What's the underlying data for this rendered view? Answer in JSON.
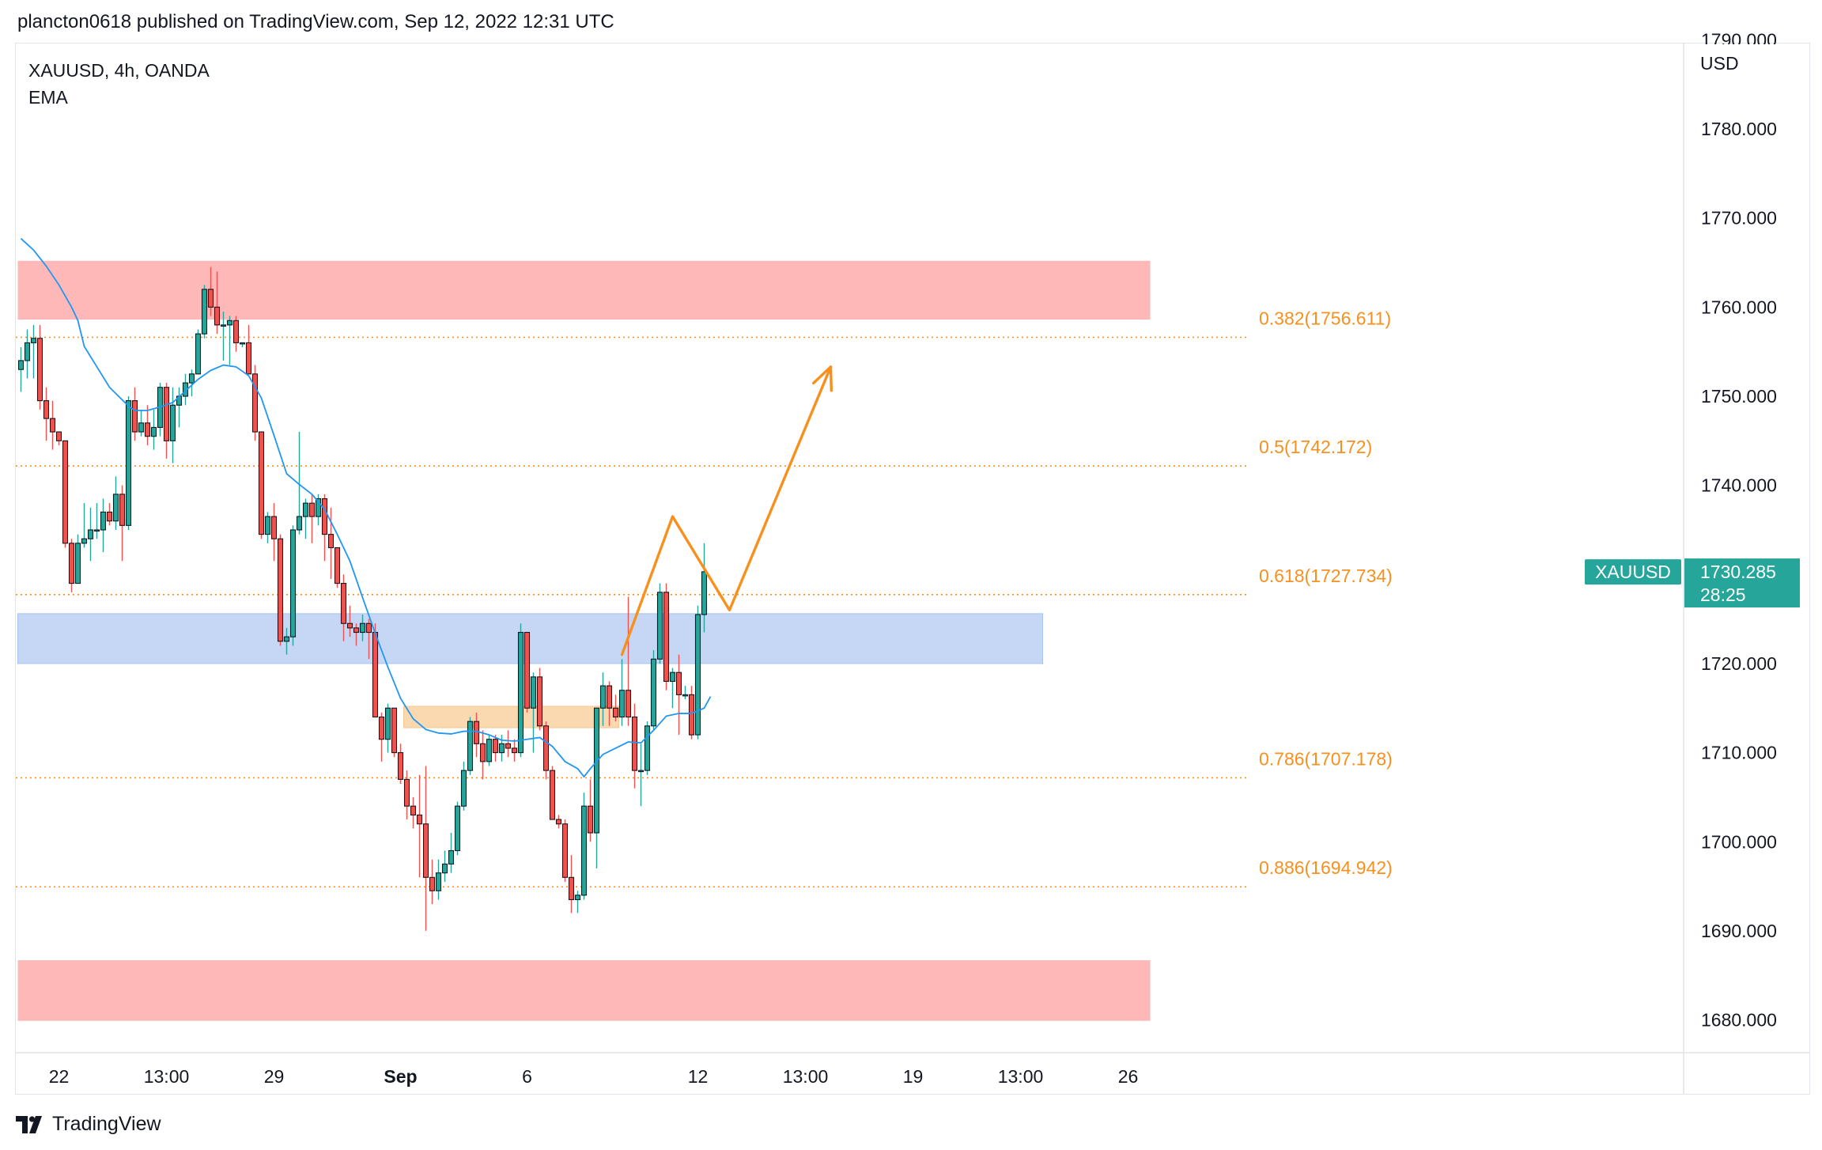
{
  "header": {
    "publisher": "plancton0618 published on TradingView.com, Sep 12, 2022 12:31 UTC"
  },
  "legend": {
    "symbol": "XAUUSD, 4h, OANDA",
    "indicator": "EMA"
  },
  "brand": {
    "name": "TradingView",
    "logo_icon": "tradingview-logo-icon"
  },
  "colors": {
    "up": "#26a69a",
    "down": "#ef5350",
    "wick": "#131722",
    "ema": "#2196f3",
    "fib": "#f7901e",
    "resistance_zone": "#ffb8b8",
    "support_zone": "#c5d7f5",
    "orange_zone": "#fbd9b0",
    "price_tag": "#26a69a"
  },
  "chart_data": {
    "type": "candlestick",
    "title": "XAUUSD, 4h, OANDA",
    "currency_label": "USD",
    "y_ticks": [
      "1780.000",
      "1770.000",
      "1760.000",
      "1750.000",
      "1740.000",
      "1730.000",
      "1720.000",
      "1710.000",
      "1700.000",
      "1690.000",
      "1680.000"
    ],
    "ylim": [
      1676.5,
      1789.5
    ],
    "x_ticks": [
      {
        "label": "22",
        "bar": 6,
        "bold": false
      },
      {
        "label": "13:00",
        "bar": 23,
        "bold": false
      },
      {
        "label": "29",
        "bar": 40,
        "bold": false
      },
      {
        "label": "Sep",
        "bar": 60,
        "bold": true
      },
      {
        "label": "6",
        "bar": 80,
        "bold": false
      },
      {
        "label": "12",
        "bar": 107,
        "bold": false
      },
      {
        "label": "13:00",
        "bar": 124,
        "bold": false
      },
      {
        "label": "19",
        "bar": 141,
        "bold": false
      },
      {
        "label": "13:00",
        "bar": 158,
        "bold": false
      },
      {
        "label": "26",
        "bar": 175,
        "bold": false
      }
    ],
    "last_price": {
      "symbol": "XAUUSD",
      "value": "1730.285",
      "countdown": "28:25",
      "y": 1730.285
    },
    "zones": [
      {
        "name": "resistance",
        "from_bar": 0,
        "to_bar": 178,
        "y_top": 1765.2,
        "y_bottom": 1758.6,
        "color": "#ffb8b8"
      },
      {
        "name": "support",
        "from_bar": 0,
        "to_bar": 178,
        "y_top": 1686.7,
        "y_bottom": 1679.9,
        "color": "#ffb8b8"
      },
      {
        "name": "demand",
        "from_bar": 0,
        "to_bar": 161,
        "y_top": 1725.6,
        "y_bottom": 1720.0,
        "color": "#c5d7f5"
      },
      {
        "name": "consolidation",
        "from_bar": 61,
        "to_bar": 94,
        "y_top": 1715.2,
        "y_bottom": 1712.8,
        "color": "#fbd9b0"
      }
    ],
    "fib_levels": [
      {
        "ratio": "0.382",
        "price": "1756.611",
        "label": "0.382(1756.611)",
        "y": 1756.611
      },
      {
        "ratio": "0.5",
        "price": "1742.172",
        "label": "0.5(1742.172)",
        "y": 1742.172
      },
      {
        "ratio": "0.618",
        "price": "1727.734",
        "label": "0.618(1727.734)",
        "y": 1727.734
      },
      {
        "ratio": "0.786",
        "price": "1707.178",
        "label": "0.786(1707.178)",
        "y": 1707.178
      },
      {
        "ratio": "0.886",
        "price": "1694.942",
        "label": "0.886(1694.942)",
        "y": 1694.942
      }
    ],
    "projection": [
      [
        95,
        1721.0
      ],
      [
        103,
        1736.5
      ],
      [
        112,
        1726.0
      ],
      [
        128,
        1753.3
      ]
    ],
    "candles": [
      [
        1753.0,
        1755.5,
        1750.5,
        1754.0
      ],
      [
        1754.0,
        1757.5,
        1752.0,
        1756.0
      ],
      [
        1756.0,
        1758.0,
        1752.0,
        1756.5
      ],
      [
        1756.5,
        1758.0,
        1748.5,
        1749.5
      ],
      [
        1749.5,
        1751.0,
        1745.0,
        1747.5
      ],
      [
        1747.5,
        1749.5,
        1744.0,
        1746.0
      ],
      [
        1746.0,
        1746.0,
        1744.5,
        1745.0
      ],
      [
        1745.0,
        1745.0,
        1733.0,
        1733.5
      ],
      [
        1733.5,
        1734.0,
        1728.0,
        1729.0
      ],
      [
        1729.0,
        1734.5,
        1729.0,
        1733.5
      ],
      [
        1733.5,
        1738.0,
        1733.0,
        1734.0
      ],
      [
        1734.0,
        1737.5,
        1731.5,
        1735.0
      ],
      [
        1735.0,
        1738.0,
        1734.0,
        1735.0
      ],
      [
        1735.0,
        1738.5,
        1732.5,
        1737.0
      ],
      [
        1737.0,
        1738.0,
        1735.5,
        1736.0
      ],
      [
        1736.0,
        1741.0,
        1735.0,
        1739.0
      ],
      [
        1739.0,
        1740.0,
        1731.5,
        1735.5
      ],
      [
        1735.5,
        1750.0,
        1735.0,
        1749.5
      ],
      [
        1749.5,
        1751.0,
        1745.0,
        1746.0
      ],
      [
        1746.0,
        1748.5,
        1745.5,
        1747.0
      ],
      [
        1747.0,
        1749.0,
        1744.5,
        1745.5
      ],
      [
        1745.5,
        1748.5,
        1744.0,
        1746.5
      ],
      [
        1746.5,
        1751.5,
        1745.5,
        1751.0
      ],
      [
        1751.0,
        1751.5,
        1743.0,
        1745.0
      ],
      [
        1745.0,
        1751.0,
        1742.5,
        1749.0
      ],
      [
        1749.0,
        1751.0,
        1746.5,
        1750.0
      ],
      [
        1750.0,
        1752.5,
        1749.0,
        1751.5
      ],
      [
        1751.5,
        1753.0,
        1750.0,
        1752.5
      ],
      [
        1752.5,
        1757.5,
        1752.5,
        1757.0
      ],
      [
        1757.0,
        1762.5,
        1756.5,
        1762.0
      ],
      [
        1762.0,
        1764.5,
        1759.0,
        1760.0
      ],
      [
        1760.0,
        1764.0,
        1757.0,
        1758.0
      ],
      [
        1758.0,
        1759.5,
        1754.0,
        1758.0
      ],
      [
        1758.0,
        1759.0,
        1753.5,
        1758.5
      ],
      [
        1758.5,
        1759.0,
        1755.0,
        1756.0
      ],
      [
        1756.0,
        1756.0,
        1755.5,
        1756.0
      ],
      [
        1756.0,
        1758.0,
        1752.5,
        1752.5
      ],
      [
        1752.5,
        1753.5,
        1745.0,
        1746.0
      ],
      [
        1746.0,
        1746.0,
        1734.0,
        1734.5
      ],
      [
        1734.5,
        1737.0,
        1733.5,
        1736.5
      ],
      [
        1736.5,
        1738.0,
        1731.5,
        1734.0
      ],
      [
        1734.0,
        1734.5,
        1722.0,
        1722.5
      ],
      [
        1722.5,
        1724.0,
        1721.0,
        1723.0
      ],
      [
        1723.0,
        1735.5,
        1722.0,
        1735.0
      ],
      [
        1735.0,
        1746.0,
        1734.5,
        1736.5
      ],
      [
        1736.5,
        1738.5,
        1734.0,
        1738.0
      ],
      [
        1738.0,
        1739.0,
        1733.5,
        1736.5
      ],
      [
        1736.5,
        1739.0,
        1735.5,
        1738.5
      ],
      [
        1738.5,
        1739.0,
        1731.5,
        1734.5
      ],
      [
        1734.5,
        1737.5,
        1729.5,
        1733.0
      ],
      [
        1733.0,
        1733.0,
        1728.5,
        1729.0
      ],
      [
        1729.0,
        1730.0,
        1722.5,
        1724.5
      ],
      [
        1724.5,
        1726.5,
        1723.0,
        1724.0
      ],
      [
        1724.0,
        1724.5,
        1722.0,
        1723.5
      ],
      [
        1723.5,
        1725.5,
        1722.5,
        1724.5
      ],
      [
        1724.5,
        1725.0,
        1720.5,
        1723.5
      ],
      [
        1723.5,
        1724.5,
        1714.0,
        1714.0
      ],
      [
        1714.0,
        1714.5,
        1709.0,
        1711.5
      ],
      [
        1711.5,
        1715.5,
        1710.0,
        1715.0
      ],
      [
        1715.0,
        1715.0,
        1709.5,
        1710.0
      ],
      [
        1710.0,
        1711.0,
        1706.5,
        1707.0
      ],
      [
        1707.0,
        1708.0,
        1702.5,
        1704.0
      ],
      [
        1704.0,
        1705.0,
        1701.5,
        1703.0
      ],
      [
        1703.0,
        1707.5,
        1696.0,
        1702.0
      ],
      [
        1702.0,
        1708.5,
        1690.0,
        1696.0
      ],
      [
        1696.0,
        1698.0,
        1693.0,
        1694.5
      ],
      [
        1694.5,
        1698.0,
        1693.5,
        1696.5
      ],
      [
        1696.5,
        1699.0,
        1695.5,
        1697.5
      ],
      [
        1697.5,
        1701.0,
        1696.5,
        1699.0
      ],
      [
        1699.0,
        1704.5,
        1698.5,
        1704.0
      ],
      [
        1704.0,
        1709.0,
        1703.5,
        1708.0
      ],
      [
        1708.0,
        1714.0,
        1707.5,
        1713.5
      ],
      [
        1713.5,
        1714.5,
        1709.5,
        1711.0
      ],
      [
        1711.0,
        1712.5,
        1707.0,
        1709.0
      ],
      [
        1709.0,
        1712.0,
        1708.5,
        1711.5
      ],
      [
        1711.5,
        1712.0,
        1709.0,
        1710.0
      ],
      [
        1710.0,
        1712.0,
        1709.0,
        1711.0
      ],
      [
        1711.0,
        1712.5,
        1709.5,
        1710.5
      ],
      [
        1710.5,
        1711.5,
        1709.0,
        1710.0
      ],
      [
        1710.0,
        1724.5,
        1709.5,
        1723.5
      ],
      [
        1723.5,
        1723.5,
        1714.5,
        1715.0
      ],
      [
        1715.0,
        1719.0,
        1710.0,
        1718.5
      ],
      [
        1718.5,
        1719.5,
        1712.5,
        1713.0
      ],
      [
        1713.0,
        1713.5,
        1707.0,
        1708.0
      ],
      [
        1708.0,
        1708.5,
        1702.5,
        1702.5
      ],
      [
        1702.5,
        1703.0,
        1701.5,
        1702.0
      ],
      [
        1702.0,
        1702.5,
        1695.5,
        1696.0
      ],
      [
        1696.0,
        1698.5,
        1692.0,
        1693.5
      ],
      [
        1693.5,
        1694.5,
        1692.0,
        1694.0
      ],
      [
        1694.0,
        1705.5,
        1693.5,
        1704.0
      ],
      [
        1704.0,
        1707.0,
        1700.0,
        1701.0
      ],
      [
        1701.0,
        1715.0,
        1697.0,
        1715.0
      ],
      [
        1715.0,
        1719.0,
        1713.0,
        1717.5
      ],
      [
        1717.5,
        1718.0,
        1713.0,
        1715.0
      ],
      [
        1715.0,
        1716.5,
        1713.5,
        1714.0
      ],
      [
        1714.0,
        1720.5,
        1713.0,
        1717.0
      ],
      [
        1717.0,
        1727.5,
        1713.0,
        1714.0
      ],
      [
        1714.0,
        1715.5,
        1706.0,
        1708.0
      ],
      [
        1708.0,
        1711.0,
        1704.0,
        1708.0
      ],
      [
        1708.0,
        1713.5,
        1707.5,
        1713.0
      ],
      [
        1713.0,
        1721.5,
        1712.5,
        1720.5
      ],
      [
        1720.5,
        1729.0,
        1720.0,
        1728.0
      ],
      [
        1728.0,
        1729.0,
        1717.0,
        1718.0
      ],
      [
        1718.0,
        1719.5,
        1715.0,
        1719.0
      ],
      [
        1719.0,
        1721.0,
        1712.0,
        1716.5
      ],
      [
        1716.5,
        1717.5,
        1716.0,
        1716.5
      ],
      [
        1716.5,
        1717.5,
        1711.5,
        1712.0
      ],
      [
        1712.0,
        1726.5,
        1711.5,
        1725.5
      ],
      [
        1725.5,
        1733.5,
        1723.5,
        1730.3
      ]
    ],
    "ema": [
      [
        0,
        1767.7
      ],
      [
        2,
        1766.4
      ],
      [
        4,
        1764.6
      ],
      [
        6,
        1762.5
      ],
      [
        8,
        1760.0
      ],
      [
        9,
        1758.5
      ],
      [
        10,
        1755.6
      ],
      [
        12,
        1753.3
      ],
      [
        14,
        1751.0
      ],
      [
        16,
        1749.6
      ],
      [
        17,
        1748.9
      ],
      [
        18,
        1748.4
      ],
      [
        20,
        1748.4
      ],
      [
        22,
        1748.8
      ],
      [
        24,
        1749.3
      ],
      [
        26,
        1750.6
      ],
      [
        28,
        1751.9
      ],
      [
        30,
        1752.9
      ],
      [
        32,
        1753.5
      ],
      [
        34,
        1753.3
      ],
      [
        36,
        1752.3
      ],
      [
        38,
        1749.8
      ],
      [
        40,
        1745.6
      ],
      [
        42,
        1741.3
      ],
      [
        44,
        1740.1
      ],
      [
        46,
        1739.0
      ],
      [
        48,
        1737.3
      ],
      [
        50,
        1734.5
      ],
      [
        52,
        1731.5
      ],
      [
        54,
        1727.4
      ],
      [
        56,
        1723.4
      ],
      [
        58,
        1719.6
      ],
      [
        60,
        1716.1
      ],
      [
        62,
        1713.8
      ],
      [
        64,
        1712.6
      ],
      [
        66,
        1712.2
      ],
      [
        68,
        1712.1
      ],
      [
        70,
        1712.4
      ],
      [
        72,
        1712.4
      ],
      [
        74,
        1712.0
      ],
      [
        76,
        1711.4
      ],
      [
        78,
        1711.3
      ],
      [
        80,
        1711.5
      ],
      [
        82,
        1711.7
      ],
      [
        84,
        1710.7
      ],
      [
        86,
        1709.0
      ],
      [
        88,
        1708.2
      ],
      [
        89,
        1707.3
      ],
      [
        90,
        1708.2
      ],
      [
        92,
        1709.8
      ],
      [
        94,
        1710.5
      ],
      [
        96,
        1711.2
      ],
      [
        98,
        1711.1
      ],
      [
        100,
        1712.5
      ],
      [
        102,
        1714.1
      ],
      [
        104,
        1714.4
      ],
      [
        106,
        1714.4
      ],
      [
        108,
        1715.0
      ],
      [
        109,
        1716.3
      ]
    ]
  }
}
